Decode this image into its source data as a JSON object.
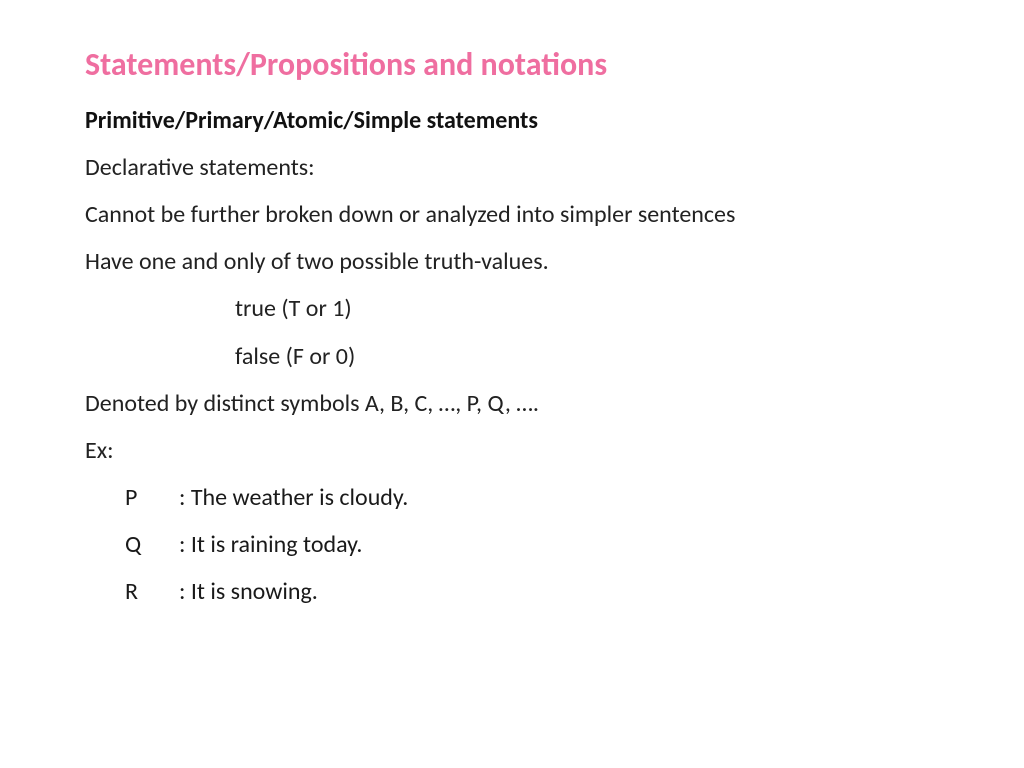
{
  "colors": {
    "title": "#ef6ea0",
    "text": "#1a1a1a",
    "background": "#ffffff"
  },
  "typography": {
    "title_fontsize": 32,
    "body_fontsize": 24,
    "font_family": "Calibri"
  },
  "title": "Statements/Propositions and notations",
  "subtitle": "Primitive/Primary/Atomic/Simple statements",
  "lines": {
    "l1": "Declarative statements:",
    "l2": "Cannot be further broken down or analyzed into simpler sentences",
    "l3": "Have one and only of two possible truth-values.",
    "l4": "true (T or 1)",
    "l5": "false (F or 0)",
    "l6": "Denoted by distinct symbols A, B, C, …, P, Q, ….",
    "l7": "Ex:"
  },
  "examples": [
    {
      "sym": "P",
      "txt": ": The weather is cloudy."
    },
    {
      "sym": "Q",
      "txt": ": It is raining today."
    },
    {
      "sym": "R",
      "txt": ": It is snowing."
    }
  ]
}
